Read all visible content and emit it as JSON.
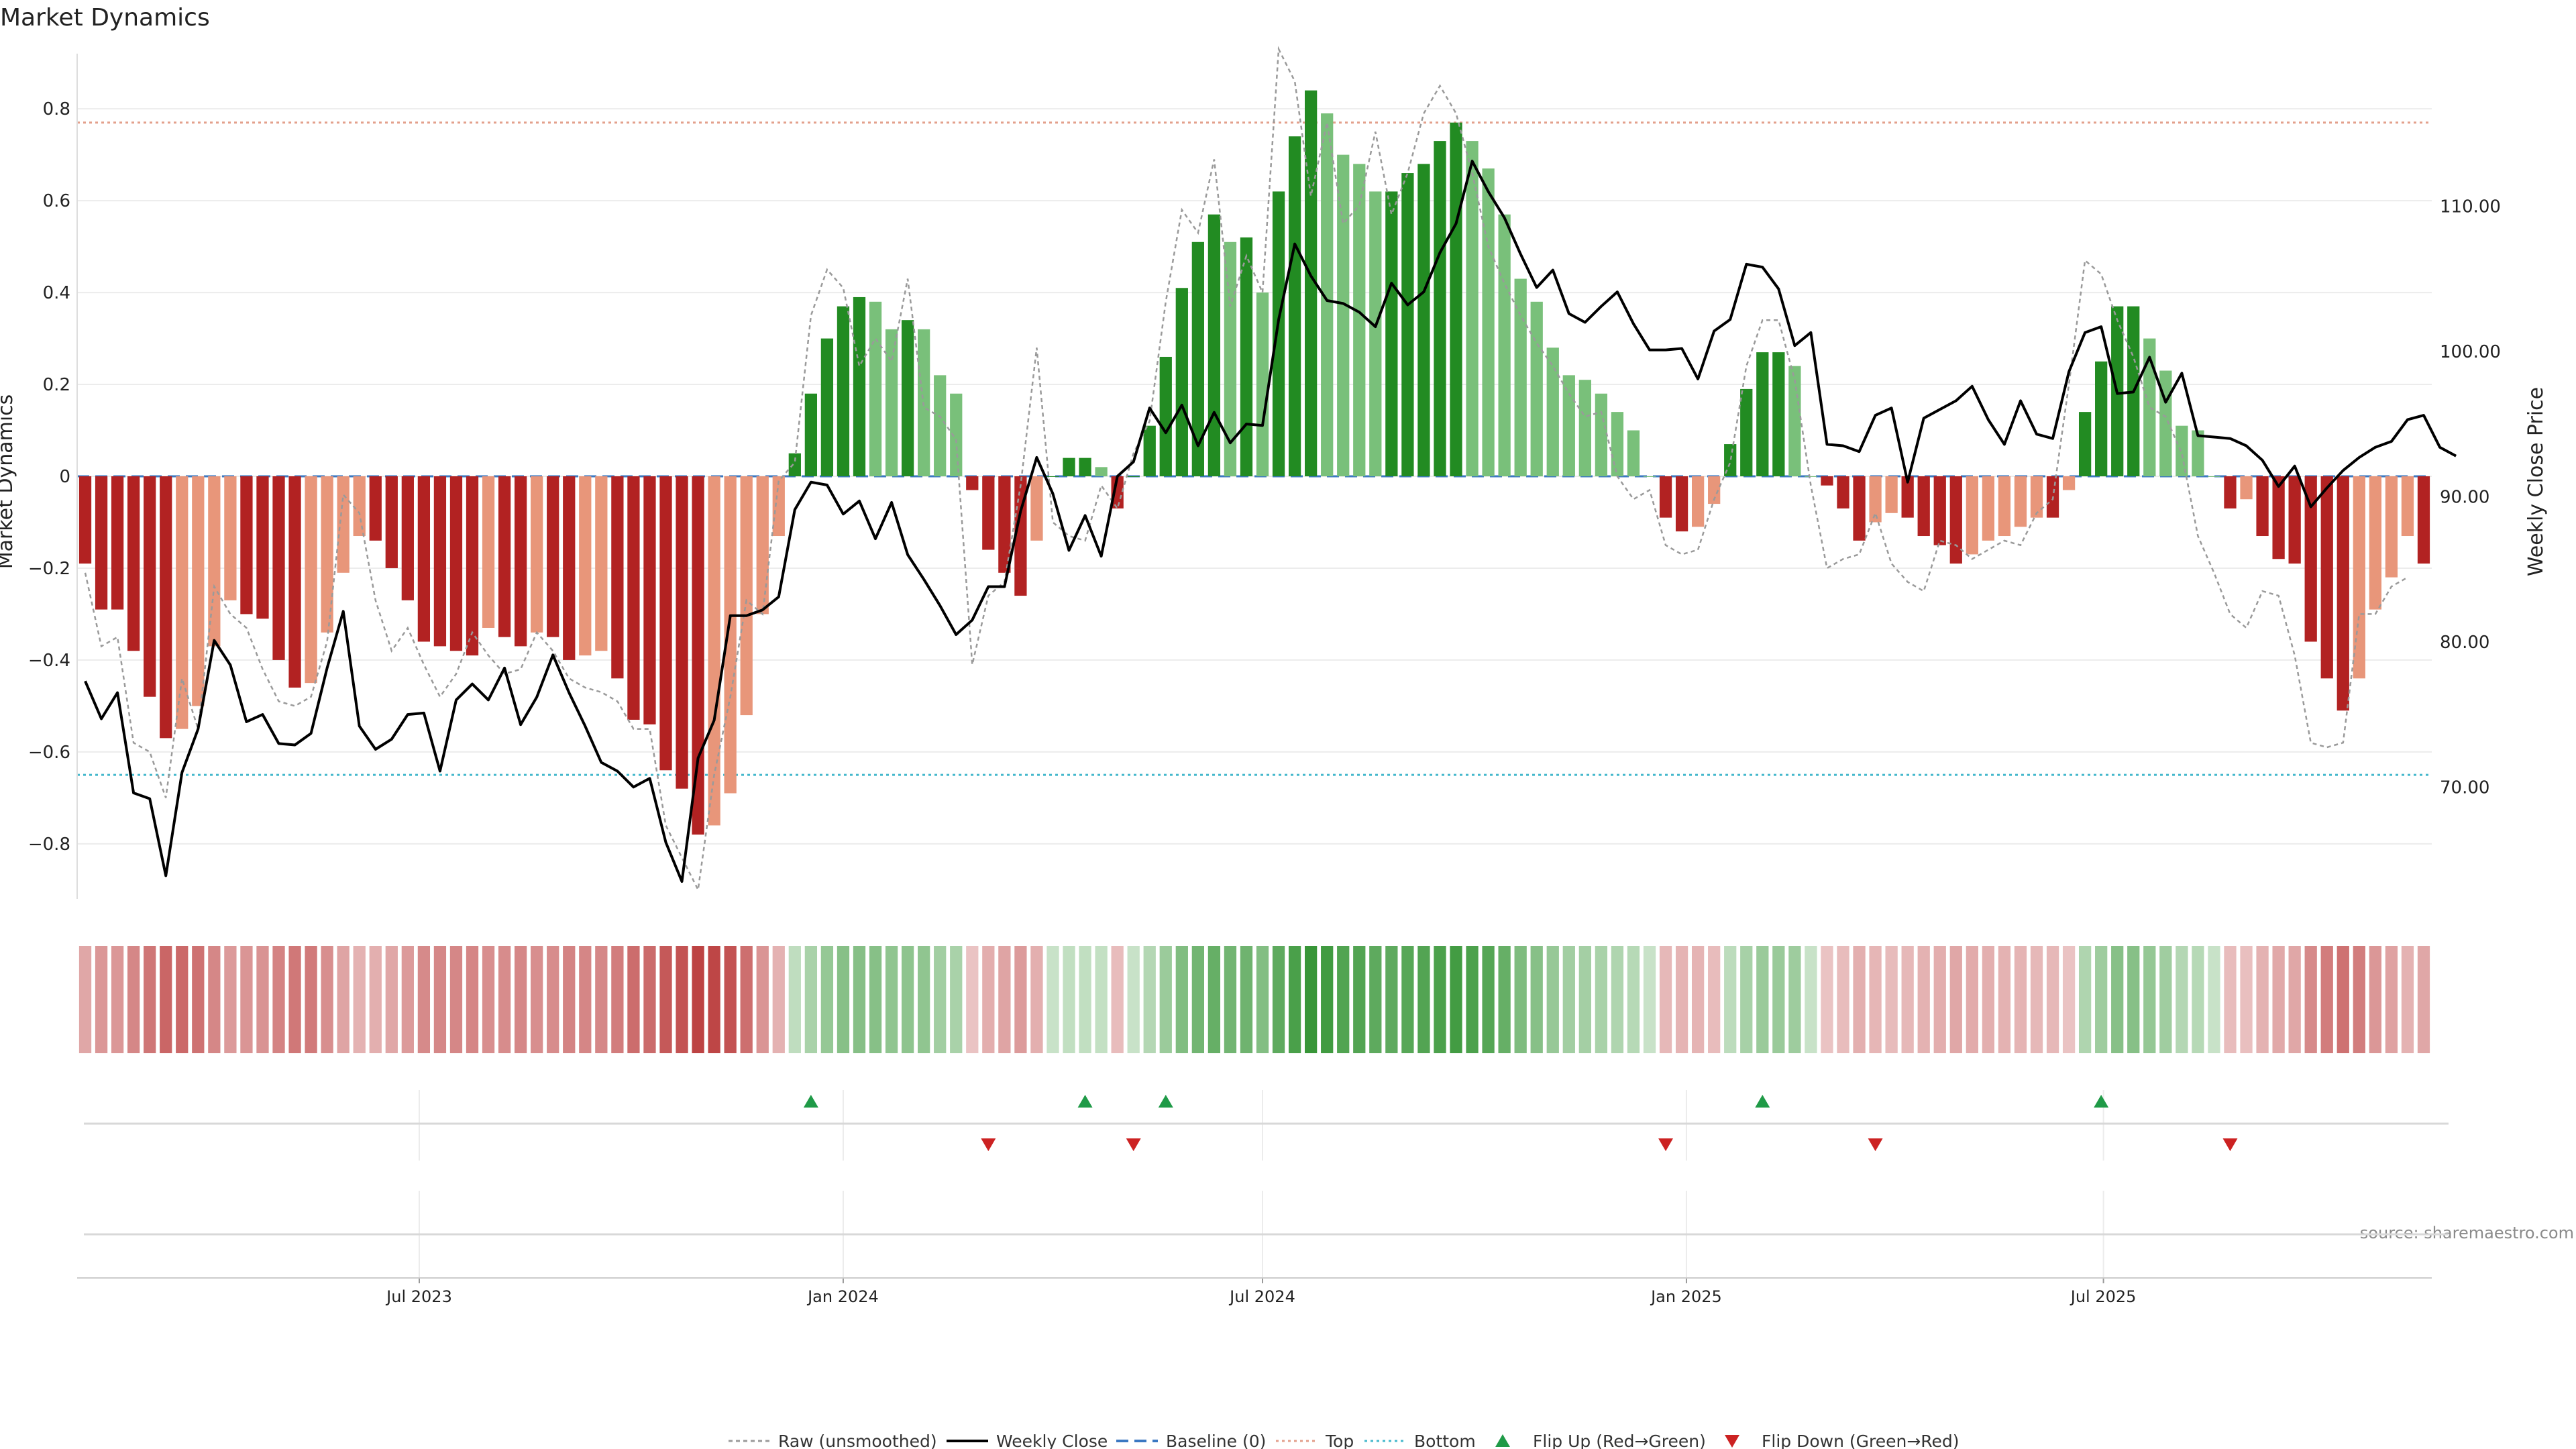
{
  "title": "Market Dynamics",
  "source": "source: sharemaestro.com",
  "colors": {
    "strong_green": "#228b22",
    "light_green": "#79c07a",
    "strong_red": "#b22222",
    "light_red": "#e8967a",
    "raw": "#9a9a9a",
    "close": "#000000",
    "baseline": "#3b78c2",
    "top": "#e3a08c",
    "bottom": "#45b8cc",
    "flip_up": "#1f9a47",
    "flip_down": "#cc2222"
  },
  "chart_data": {
    "type": "bar",
    "title": "Market Dynamics",
    "ylabel": "Market Dynamics",
    "y2label": "Weekly Close Price",
    "ylim": [
      -0.92,
      0.92
    ],
    "y2lim": [
      62.3,
      120.5
    ],
    "yticks": [
      -0.8,
      -0.6,
      -0.4,
      -0.2,
      0,
      0.2,
      0.4,
      0.6,
      0.8
    ],
    "ytick_labels": [
      "−0.8",
      "−0.6",
      "−0.4",
      "−0.2",
      "0",
      "0.2",
      "0.4",
      "0.6",
      "0.8"
    ],
    "y2ticks": [
      70,
      80,
      90,
      100,
      110
    ],
    "y2tick_labels": [
      "70.00",
      "80.00",
      "90.00",
      "100.00",
      "110.00"
    ],
    "x_start": "2023-02-06",
    "x_step_days": 7,
    "xticks": [
      {
        "label": "Jul 2023",
        "date": "2023-07-01"
      },
      {
        "label": "Jan 2024",
        "date": "2024-01-01"
      },
      {
        "label": "Jul 2024",
        "date": "2024-07-01"
      },
      {
        "label": "Jan 2025",
        "date": "2025-01-01"
      },
      {
        "label": "Jul 2025",
        "date": "2025-07-01"
      }
    ],
    "top_level": 0.77,
    "bottom_level": -0.65,
    "bars": [
      -0.19,
      -0.29,
      -0.29,
      -0.38,
      -0.48,
      -0.57,
      -0.55,
      -0.5,
      -0.37,
      -0.27,
      -0.3,
      -0.31,
      -0.4,
      -0.46,
      -0.45,
      -0.34,
      -0.21,
      -0.13,
      -0.14,
      -0.2,
      -0.27,
      -0.36,
      -0.37,
      -0.38,
      -0.39,
      -0.33,
      -0.35,
      -0.37,
      -0.34,
      -0.35,
      -0.4,
      -0.39,
      -0.38,
      -0.44,
      -0.53,
      -0.54,
      -0.64,
      -0.68,
      -0.78,
      -0.76,
      -0.69,
      -0.52,
      -0.3,
      -0.13,
      0.05,
      0.18,
      0.3,
      0.37,
      0.39,
      0.38,
      0.32,
      0.34,
      0.32,
      0.22,
      0.18,
      -0.03,
      -0.16,
      -0.21,
      -0.26,
      -0.14,
      0.0,
      0.04,
      0.04,
      0.02,
      -0.07,
      0.0,
      0.11,
      0.26,
      0.41,
      0.51,
      0.57,
      0.51,
      0.52,
      0.4,
      0.62,
      0.74,
      0.84,
      0.79,
      0.7,
      0.68,
      0.62,
      0.62,
      0.66,
      0.68,
      0.73,
      0.77,
      0.73,
      0.67,
      0.57,
      0.43,
      0.38,
      0.28,
      0.22,
      0.21,
      0.18,
      0.14,
      0.1,
      0.0,
      -0.09,
      -0.12,
      -0.11,
      -0.06,
      0.07,
      0.19,
      0.27,
      0.27,
      0.24,
      0.0,
      -0.02,
      -0.07,
      -0.14,
      -0.1,
      -0.08,
      -0.09,
      -0.13,
      -0.15,
      -0.19,
      -0.17,
      -0.14,
      -0.13,
      -0.11,
      -0.09,
      -0.09,
      -0.03,
      0.14,
      0.25,
      0.37,
      0.37,
      0.3,
      0.23,
      0.11,
      0.1,
      0.0,
      -0.07,
      -0.05,
      -0.13,
      -0.18,
      -0.19,
      -0.36,
      -0.44,
      -0.51,
      -0.44,
      -0.29,
      -0.22,
      -0.13,
      -0.19
    ],
    "raw": [
      -0.21,
      -0.37,
      -0.35,
      -0.58,
      -0.6,
      -0.7,
      -0.44,
      -0.55,
      -0.24,
      -0.3,
      -0.33,
      -0.42,
      -0.49,
      -0.5,
      -0.48,
      -0.36,
      -0.04,
      -0.08,
      -0.27,
      -0.38,
      -0.33,
      -0.41,
      -0.48,
      -0.43,
      -0.34,
      -0.39,
      -0.43,
      -0.42,
      -0.34,
      -0.38,
      -0.44,
      -0.46,
      -0.47,
      -0.49,
      -0.55,
      -0.55,
      -0.76,
      -0.83,
      -0.9,
      -0.65,
      -0.48,
      -0.27,
      -0.3,
      -0.01,
      0.03,
      0.35,
      0.45,
      0.41,
      0.24,
      0.3,
      0.25,
      0.43,
      0.15,
      0.13,
      0.08,
      -0.41,
      -0.26,
      -0.23,
      -0.02,
      0.28,
      -0.1,
      -0.13,
      -0.14,
      -0.02,
      -0.07,
      0.05,
      0.12,
      0.38,
      0.58,
      0.53,
      0.69,
      0.37,
      0.48,
      0.4,
      0.93,
      0.86,
      0.61,
      0.77,
      0.55,
      0.59,
      0.75,
      0.57,
      0.66,
      0.79,
      0.85,
      0.79,
      0.66,
      0.5,
      0.42,
      0.35,
      0.29,
      0.24,
      0.18,
      0.13,
      0.14,
      0.0,
      -0.05,
      -0.03,
      -0.15,
      -0.17,
      -0.16,
      -0.05,
      0.03,
      0.24,
      0.34,
      0.34,
      0.21,
      -0.02,
      -0.2,
      -0.18,
      -0.17,
      -0.08,
      -0.19,
      -0.23,
      -0.25,
      -0.14,
      -0.15,
      -0.18,
      -0.16,
      -0.14,
      -0.15,
      -0.08,
      -0.05,
      0.2,
      0.47,
      0.44,
      0.34,
      0.26,
      0.15,
      0.13,
      0.05,
      -0.13,
      -0.21,
      -0.3,
      -0.33,
      -0.25,
      -0.26,
      -0.39,
      -0.58,
      -0.59,
      -0.58,
      -0.3,
      -0.3,
      -0.24,
      -0.22
    ],
    "close": [
      77.3,
      74.7,
      76.5,
      69.6,
      69.2,
      63.9,
      71.0,
      74.0,
      80.1,
      78.4,
      74.5,
      75.0,
      73.0,
      72.9,
      73.7,
      78.2,
      82.1,
      74.2,
      72.6,
      73.3,
      75.0,
      75.1,
      71.1,
      76.0,
      77.1,
      76.0,
      78.2,
      74.3,
      76.2,
      79.1,
      76.5,
      74.2,
      71.7,
      71.1,
      70.0,
      70.6,
      66.2,
      63.5,
      72.0,
      74.6,
      81.8,
      81.8,
      82.2,
      83.1,
      89.1,
      91.0,
      90.8,
      88.8,
      89.7,
      87.1,
      89.6,
      86.0,
      84.3,
      82.5,
      80.5,
      81.5,
      83.8,
      83.8,
      89.0,
      92.7,
      90.2,
      86.3,
      88.7,
      85.9,
      91.4,
      92.4,
      96.1,
      94.4,
      96.3,
      93.5,
      95.8,
      93.7,
      95.0,
      94.9,
      102.2,
      107.4,
      105.2,
      103.5,
      103.3,
      102.7,
      101.7,
      104.7,
      103.2,
      104.1,
      106.8,
      108.8,
      113.1,
      111.0,
      109.2,
      106.7,
      104.4,
      105.6,
      102.6,
      102.0,
      103.1,
      104.1,
      101.9,
      100.1,
      100.1,
      100.2,
      98.1,
      101.4,
      102.2,
      106.0,
      105.8,
      104.3,
      100.4,
      101.3,
      93.6,
      93.5,
      93.1,
      95.6,
      96.1,
      91.0,
      95.4,
      96.0,
      96.6,
      97.6,
      95.3,
      93.6,
      96.6,
      94.3,
      94.0,
      98.6,
      101.3,
      101.7,
      97.1,
      97.2,
      99.6,
      96.5,
      98.5,
      94.2,
      94.1,
      94.0,
      93.5,
      92.5,
      90.7,
      92.1,
      89.3,
      90.6,
      91.8,
      92.7,
      93.4,
      93.8,
      95.3,
      95.6,
      93.4,
      92.8
    ]
  },
  "signals": {
    "flip_up_dates": [
      "2023-12-18",
      "2024-04-15",
      "2024-05-20",
      "2025-02-03",
      "2025-06-30"
    ],
    "flip_down_dates": [
      "2024-03-04",
      "2024-05-06",
      "2024-12-23",
      "2025-03-24",
      "2025-08-25"
    ]
  },
  "legend": {
    "raw": "Raw (unsmoothed)",
    "close": "Weekly Close",
    "baseline": "Baseline (0)",
    "top": "Top",
    "bottom": "Bottom",
    "flip_up": "Flip Up (Red→Green)",
    "flip_down": "Flip Down (Green→Red)"
  }
}
